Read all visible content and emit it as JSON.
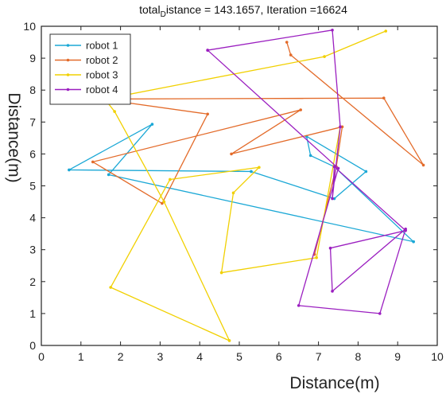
{
  "chart_data": {
    "type": "line",
    "title": {
      "prefix": "total",
      "subscript": "D",
      "suffix": "istance = 143.1657, Iteration =16624"
    },
    "xlabel": "Distance(m)",
    "ylabel": "Distance(m)",
    "xlim": [
      0,
      10
    ],
    "ylim": [
      0,
      10
    ],
    "xticks": [
      0,
      1,
      2,
      3,
      4,
      5,
      6,
      7,
      8,
      9,
      10
    ],
    "yticks": [
      0,
      1,
      2,
      3,
      4,
      5,
      6,
      7,
      8,
      9,
      10
    ],
    "grid": false,
    "legend_position": "top-left",
    "series": [
      {
        "name": "robot 1",
        "color": "#1ba8d6",
        "x": [
          9.4,
          1.7,
          2.8,
          0.7,
          5.3,
          7.4,
          8.2,
          6.7,
          6.8,
          7.4,
          9.4
        ],
        "y": [
          3.25,
          5.35,
          6.93,
          5.5,
          5.45,
          4.6,
          5.45,
          6.55,
          5.95,
          5.6,
          3.25
        ]
      },
      {
        "name": "robot 2",
        "color": "#e36b2a",
        "x": [
          6.9,
          7.45,
          7.6,
          4.8,
          6.55,
          1.3,
          3.05,
          4.2,
          1.5,
          8.65,
          9.65,
          6.3,
          6.2
        ],
        "y": [
          2.85,
          5.6,
          6.85,
          6.0,
          7.38,
          5.75,
          4.45,
          7.25,
          7.72,
          7.75,
          5.65,
          9.1,
          9.5
        ]
      },
      {
        "name": "robot 3",
        "color": "#f1d000",
        "x": [
          8.7,
          7.15,
          1.6,
          1.85,
          3.1,
          4.75,
          1.75,
          3.25,
          5.5,
          4.85,
          4.55,
          6.95,
          7.55
        ],
        "y": [
          9.85,
          9.05,
          7.72,
          7.33,
          4.5,
          0.15,
          1.82,
          5.2,
          5.58,
          4.78,
          2.28,
          2.75,
          6.85
        ]
      },
      {
        "name": "robot 4",
        "color": "#9b1fc0",
        "x": [
          4.2,
          7.35,
          7.55,
          7.35,
          7.4,
          9.2,
          7.3,
          7.35,
          9.2,
          8.55,
          6.5,
          7.5,
          4.2
        ],
        "y": [
          9.25,
          9.88,
          6.85,
          4.6,
          5.6,
          3.6,
          3.05,
          1.7,
          3.65,
          1.0,
          1.25,
          5.55,
          9.25
        ]
      }
    ]
  }
}
